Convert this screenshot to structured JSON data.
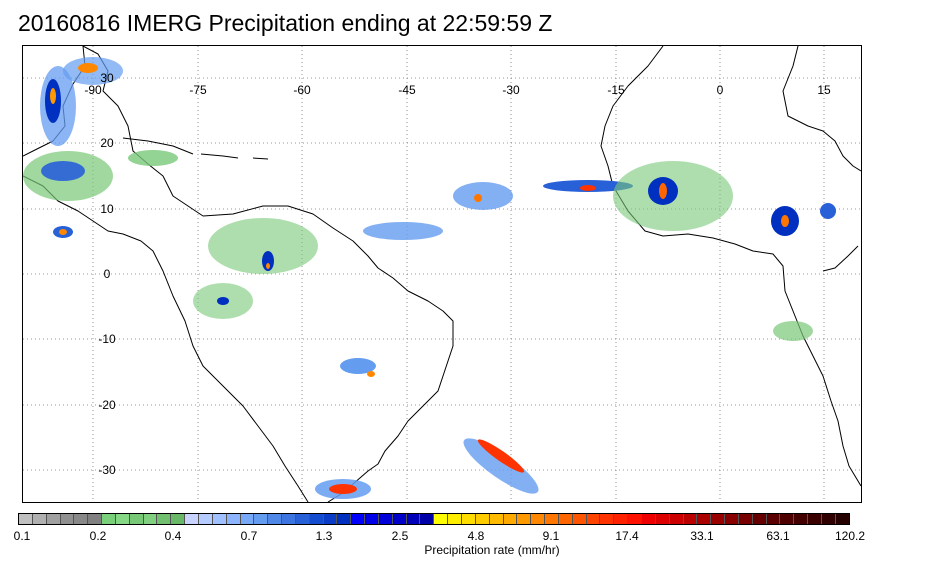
{
  "title": "20160816 IMERG Precipitation ending at 22:59:59 Z",
  "map": {
    "lon_labels": [
      "-90",
      "-75",
      "-60",
      "-45",
      "-30",
      "-15",
      "0",
      "15"
    ],
    "lat_labels": [
      "30",
      "20",
      "10",
      "0",
      "-10",
      "-20",
      "-30"
    ]
  },
  "colorbar": {
    "label": "Precipitation rate (mm/hr)",
    "tick_labels": [
      "0.1",
      "0.2",
      "0.4",
      "0.7",
      "1.3",
      "2.5",
      "4.8",
      "9.1",
      "17.4",
      "33.1",
      "63.1",
      "120.2"
    ],
    "colors": [
      "#c0c0c0",
      "#b0b0b0",
      "#a0a0a0",
      "#909090",
      "#888888",
      "#808080",
      "#7ad07a",
      "#86d886",
      "#78c878",
      "#80d080",
      "#70c070",
      "#68b868",
      "#c8d4ff",
      "#b4ccff",
      "#a0c0ff",
      "#8cb4ff",
      "#78a8f8",
      "#649cf0",
      "#5088e8",
      "#3c74e0",
      "#2860d8",
      "#144cd0",
      "#0a3cc8",
      "#0030c0",
      "#0000ff",
      "#0000e8",
      "#0000d8",
      "#0000c8",
      "#0000b8",
      "#0000a8",
      "#ffff00",
      "#ffee00",
      "#ffdd00",
      "#ffcc00",
      "#ffbb00",
      "#ffaa00",
      "#ff9900",
      "#ff8800",
      "#ff7700",
      "#ff6600",
      "#ff5500",
      "#ff4400",
      "#ff3300",
      "#ff2200",
      "#ff1100",
      "#ee0000",
      "#dd0000",
      "#cc0000",
      "#bb0000",
      "#aa0000",
      "#990000",
      "#880000",
      "#770000",
      "#660000",
      "#5a0000",
      "#4e0000",
      "#440000",
      "#3a0000",
      "#300000",
      "#260000"
    ]
  }
}
